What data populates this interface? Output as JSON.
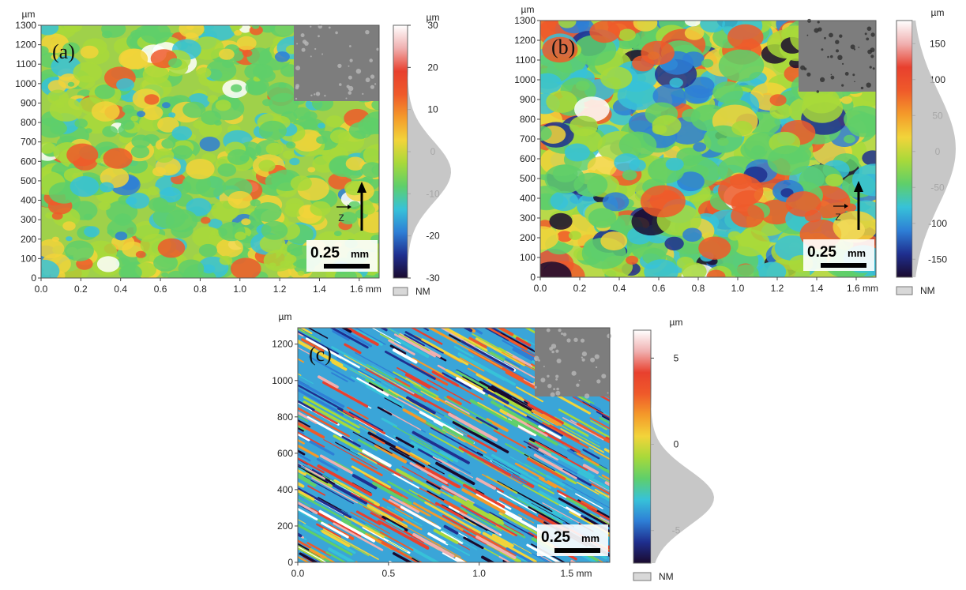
{
  "figure": {
    "panels": [
      {
        "id": "a",
        "label": "(a)",
        "unit_y": "µm",
        "x_ticks": [
          "0.0",
          "0.2",
          "0.4",
          "0.6",
          "0.8",
          "1.0",
          "1.2",
          "1.4",
          "1.6 mm"
        ],
        "y_ticks": [
          "0",
          "100",
          "200",
          "300",
          "400",
          "500",
          "600",
          "700",
          "800",
          "900",
          "1000",
          "1100",
          "1200",
          "1300"
        ],
        "colorbar_unit": "µm",
        "colorbar_ticks": [
          "30",
          "20",
          "10",
          "0",
          "-10",
          "-20",
          "-30"
        ],
        "scale_value": "0.25",
        "scale_unit": "mm",
        "axis_symbol": "Z",
        "nm_label": "NM"
      },
      {
        "id": "b",
        "label": "(b)",
        "unit_y": "µm",
        "x_ticks": [
          "0.0",
          "0.2",
          "0.4",
          "0.6",
          "0.8",
          "1.0",
          "1.2",
          "1.4",
          "1.6 mm"
        ],
        "y_ticks": [
          "0",
          "100",
          "200",
          "300",
          "400",
          "500",
          "600",
          "700",
          "800",
          "900",
          "1000",
          "1100",
          "1200",
          "1300"
        ],
        "colorbar_unit": "µm",
        "colorbar_ticks": [
          "150",
          "100",
          "50",
          "0",
          "-50",
          "-100",
          "-150"
        ],
        "scale_value": "0.25",
        "scale_unit": "mm",
        "axis_symbol": "Z",
        "nm_label": "NM"
      },
      {
        "id": "c",
        "label": "(c)",
        "unit_y": "µm",
        "x_ticks": [
          "0.0",
          "0.5",
          "1.0",
          "1.5 mm"
        ],
        "y_ticks": [
          "0",
          "200",
          "400",
          "600",
          "800",
          "1000",
          "1200"
        ],
        "colorbar_unit": "µm",
        "colorbar_ticks": [
          "5",
          "0",
          "-5"
        ],
        "scale_value": "0.25",
        "scale_unit": "mm",
        "nm_label": "NM"
      }
    ],
    "colors": {
      "colormap": [
        "#1a0a2e",
        "#1f2f8f",
        "#2e7fd6",
        "#37c2d8",
        "#5fcf6a",
        "#a8d93a",
        "#f2d43a",
        "#f49a2a",
        "#ef5a2a",
        "#e8402e",
        "#f0b0b0",
        "#ffffff"
      ],
      "histogram": "#bdbdbd",
      "inset": "#7d7d7d"
    }
  }
}
